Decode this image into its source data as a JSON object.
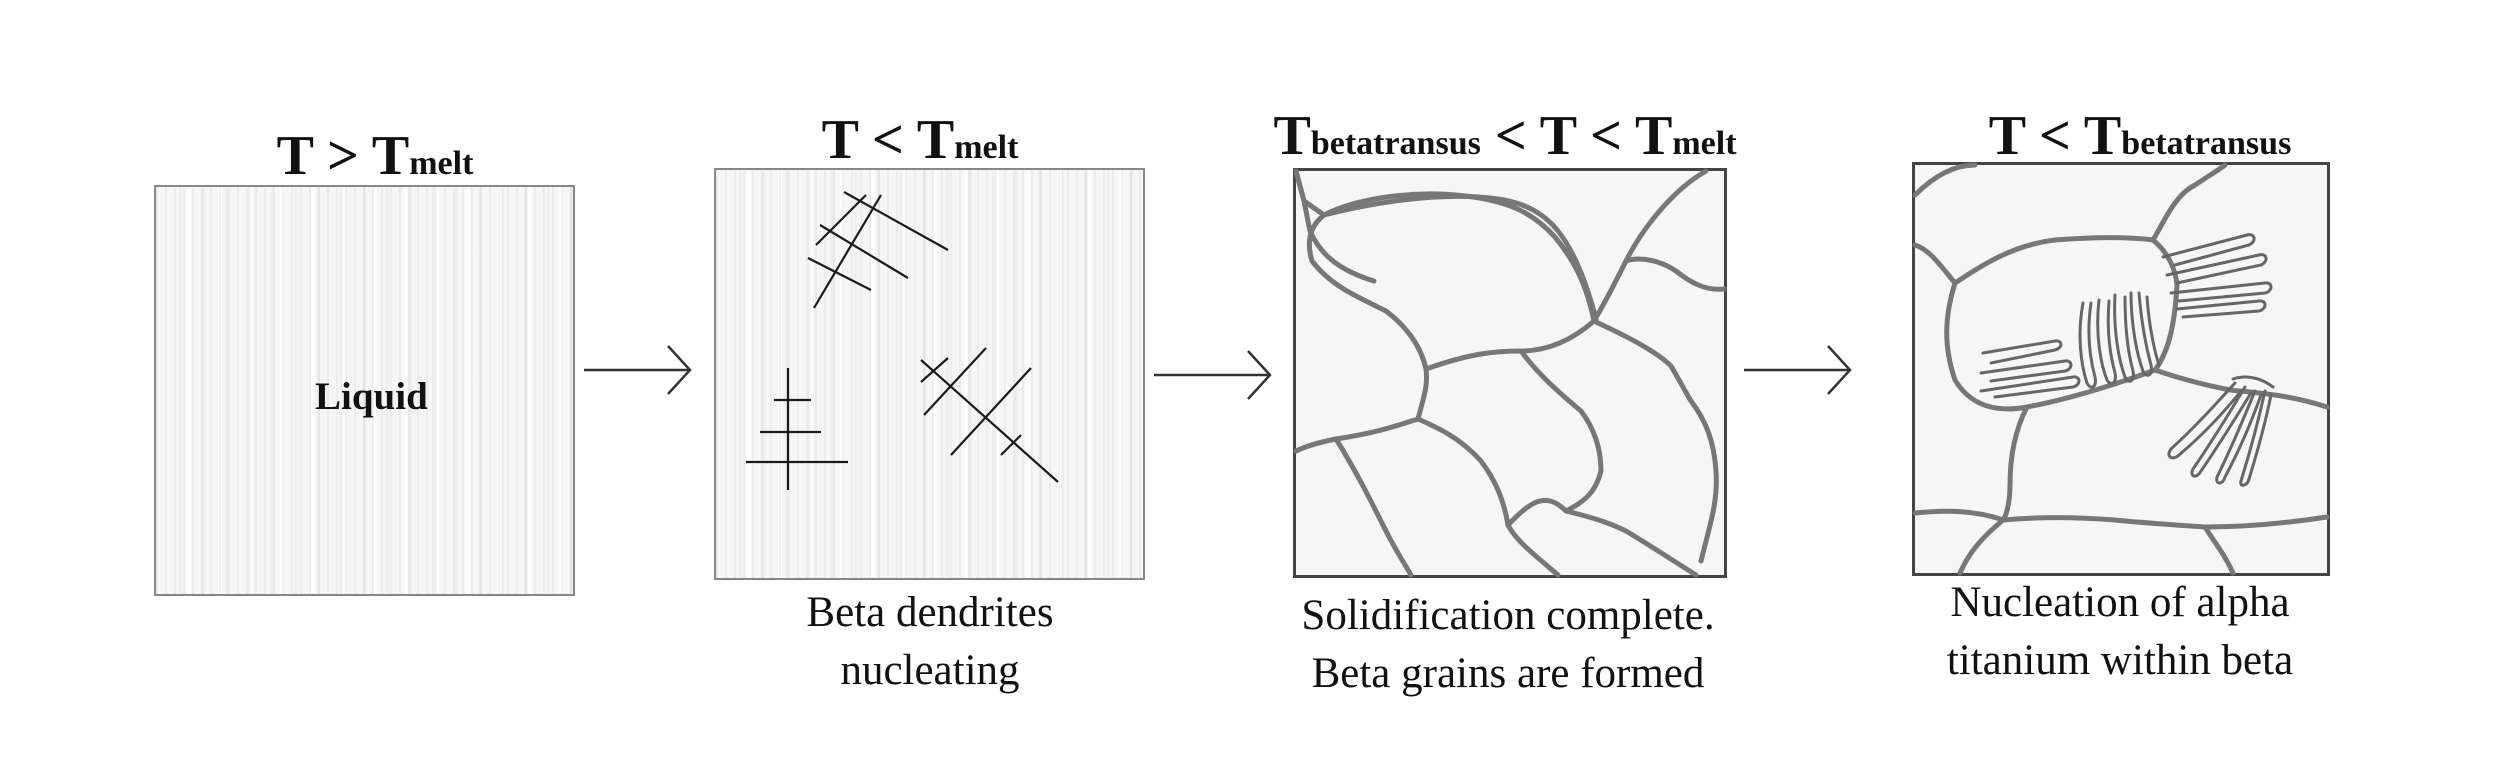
{
  "stages": [
    {
      "title": {
        "lead": "T > T",
        "sub": "melt",
        "tail": ""
      },
      "inner_label": "Liquid",
      "caption": []
    },
    {
      "title": {
        "lead": "T <  T",
        "sub": "melt",
        "tail": ""
      },
      "inner_label": "",
      "caption": [
        "Beta dendrites",
        "nucleating"
      ]
    },
    {
      "title": {
        "lead": "T",
        "sub": "betatransus",
        "tail": " < T < T",
        "sub2": "melt"
      },
      "inner_label": "",
      "caption": [
        "Solidification complete.",
        "Beta grains are formed"
      ]
    },
    {
      "title": {
        "lead": "T <  T",
        "sub": "betatransus",
        "tail": ""
      },
      "inner_label": "",
      "caption": [
        "Nucleation of alpha",
        "titanium within beta"
      ]
    }
  ],
  "colors": {
    "panel_fill": "#f6f6f6",
    "grain_boundary": "#777777",
    "dendrite": "#1a1a1a",
    "arrow": "#333333"
  }
}
